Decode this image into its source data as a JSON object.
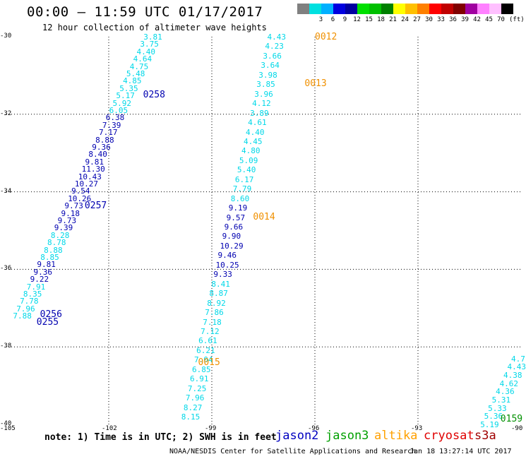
{
  "header": {
    "title": "00:00 – 11:59 UTC 01/17/2017",
    "subtitle": "12 hour collection of altimeter wave heights"
  },
  "legend": {
    "unit": "(ft)",
    "items": [
      {
        "color": "#808080",
        "label": ""
      },
      {
        "color": "#00e0e0",
        "label": "3"
      },
      {
        "color": "#00b0ff",
        "label": "6"
      },
      {
        "color": "#0000e0",
        "label": "9"
      },
      {
        "color": "#0000a0",
        "label": "12"
      },
      {
        "color": "#00e000",
        "label": "15"
      },
      {
        "color": "#00c000",
        "label": "18"
      },
      {
        "color": "#008000",
        "label": "21"
      },
      {
        "color": "#ffff00",
        "label": "24"
      },
      {
        "color": "#ffc000",
        "label": "27"
      },
      {
        "color": "#ff8000",
        "label": "30"
      },
      {
        "color": "#ff0000",
        "label": "33"
      },
      {
        "color": "#c00000",
        "label": "36"
      },
      {
        "color": "#800000",
        "label": "39"
      },
      {
        "color": "#a000a0",
        "label": "42"
      },
      {
        "color": "#ff80ff",
        "label": "45"
      },
      {
        "color": "#ffc0ff",
        "label": "70"
      },
      {
        "color": "#000000",
        "label": ""
      }
    ]
  },
  "axes": {
    "lat_labels": [
      "-30",
      "-32",
      "-34",
      "-36",
      "-38",
      "-40"
    ],
    "lon_labels": [
      "-105",
      "-102",
      "-99",
      "-96",
      "-93",
      "-90"
    ]
  },
  "colors": {
    "cyan": "#00d8e8",
    "blue": "#0000b0",
    "orange": "#f09000",
    "green": "#009000",
    "red": "#e00000",
    "darkred": "#a00000"
  },
  "tracks": [
    {
      "id": "track-a",
      "start": {
        "lon": -100.7,
        "lat": -30.0
      },
      "end": {
        "lon": -104.5,
        "lat": -37.2
      },
      "heights": [
        "3.81",
        "3.75",
        "4.40",
        "4.64",
        "4.75",
        "5.48",
        "4.85",
        "5.35",
        "5.17",
        "5.92",
        "6.05",
        "6.38",
        "7.39",
        "7.17",
        "8.88",
        "9.36",
        "8.40",
        "9.81",
        "11.30",
        "10.43",
        "10.27",
        "9.54",
        "10.26",
        "9.73",
        "9.18",
        "9.73",
        "9.39",
        "8.28",
        "8.78",
        "8.88",
        "8.85",
        "9.81",
        "9.36",
        "9.22",
        "7.91",
        "8.35",
        "7.78",
        "7.96",
        "7.88"
      ],
      "colors": [
        "cyan",
        "cyan",
        "cyan",
        "cyan",
        "cyan",
        "cyan",
        "cyan",
        "cyan",
        "cyan",
        "cyan",
        "cyan",
        "blue",
        "blue",
        "blue",
        "blue",
        "blue",
        "blue",
        "blue",
        "blue",
        "blue",
        "blue",
        "blue",
        "blue",
        "blue",
        "blue",
        "blue",
        "blue",
        "cyan",
        "cyan",
        "cyan",
        "cyan",
        "blue",
        "blue",
        "blue",
        "cyan",
        "cyan",
        "cyan",
        "cyan",
        "cyan"
      ]
    },
    {
      "id": "track-b",
      "start": {
        "lon": -97.1,
        "lat": -30.0
      },
      "end": {
        "lon": -99.6,
        "lat": -39.8
      },
      "heights": [
        "4.43",
        "4.23",
        "3.66",
        "3.64",
        "3.98",
        "3.85",
        "3.96",
        "4.12",
        "3.89",
        "4.61",
        "4.40",
        "4.45",
        "4.80",
        "5.09",
        "5.40",
        "6.17",
        "7.79",
        "8.60",
        "9.19",
        "9.57",
        "9.66",
        "9.90",
        "10.29",
        "9.46",
        "10.25",
        "9.33",
        "8.41",
        "8.87",
        "8.92",
        "7.86",
        "7.18",
        "7.12",
        "6.61",
        "6.21",
        "7.04",
        "6.85",
        "6.91",
        "7.25",
        "7.96",
        "8.27",
        "8.15"
      ],
      "colors": [
        "cyan",
        "cyan",
        "cyan",
        "cyan",
        "cyan",
        "cyan",
        "cyan",
        "cyan",
        "cyan",
        "cyan",
        "cyan",
        "cyan",
        "cyan",
        "cyan",
        "cyan",
        "cyan",
        "cyan",
        "cyan",
        "blue",
        "blue",
        "blue",
        "blue",
        "blue",
        "blue",
        "blue",
        "blue",
        "cyan",
        "cyan",
        "cyan",
        "cyan",
        "cyan",
        "cyan",
        "cyan",
        "cyan",
        "cyan",
        "cyan",
        "cyan",
        "cyan",
        "cyan",
        "cyan",
        "cyan"
      ]
    },
    {
      "id": "track-c",
      "start": {
        "lon": -90.0,
        "lat": -38.3
      },
      "end": {
        "lon": -90.9,
        "lat": -40.0
      },
      "heights": [
        "4.7",
        "4.43",
        "4.38",
        "4.62",
        "4.36",
        "5.31",
        "5.33",
        "5.36",
        "5.19"
      ],
      "colors": [
        "cyan",
        "cyan",
        "cyan",
        "cyan",
        "cyan",
        "cyan",
        "cyan",
        "cyan",
        "cyan"
      ]
    }
  ],
  "passes": [
    {
      "label": "0012",
      "lon": -96.0,
      "lat": -30.0,
      "color": "orange"
    },
    {
      "label": "0013",
      "lon": -96.3,
      "lat": -31.2,
      "color": "orange"
    },
    {
      "label": "0258",
      "lon": -101.0,
      "lat": -31.5,
      "color": "blue"
    },
    {
      "label": "0257",
      "lon": -102.7,
      "lat": -34.35,
      "color": "blue"
    },
    {
      "label": "0014",
      "lon": -97.8,
      "lat": -34.65,
      "color": "orange"
    },
    {
      "label": "0256",
      "lon": -104.0,
      "lat": -37.15,
      "color": "blue"
    },
    {
      "label": "0255",
      "lon": -104.1,
      "lat": -37.35,
      "color": "blue"
    },
    {
      "label": "0015",
      "lon": -99.4,
      "lat": -38.4,
      "color": "orange"
    },
    {
      "label": "0159",
      "lon": -90.6,
      "lat": -39.85,
      "color": "green"
    }
  ],
  "footer": {
    "note": "note: 1) Time is in UTC; 2) SWH is in feet",
    "satellites": [
      {
        "name": "jason2",
        "color": "#0000c0"
      },
      {
        "name": "jason3",
        "color": "#00a000"
      },
      {
        "name": "altika",
        "color": "#ffa000"
      },
      {
        "name": "cryosat",
        "color": "#e00000"
      },
      {
        "name": "s3a",
        "color": "#a00000"
      }
    ],
    "credit": "NOAA/NESDIS Center for Satellite Applications and Research",
    "timestamp": "Jan 18 13:27:14 UTC 2017"
  }
}
